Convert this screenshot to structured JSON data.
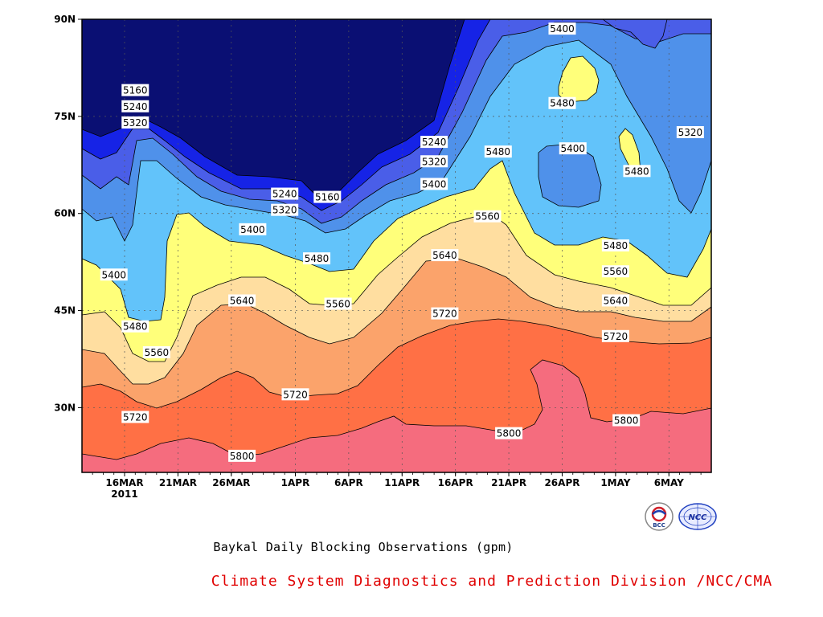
{
  "chart_data": {
    "type": "heatmap",
    "title": "Baykal Daily Blocking Observations (gpm)",
    "xlabel": "",
    "ylabel": "",
    "x_ticks": [
      "16MAR",
      "21MAR",
      "26MAR",
      "1APR",
      "6APR",
      "11APR",
      "16APR",
      "21APR",
      "26APR",
      "1MAY",
      "6MAY"
    ],
    "x_year_label": "2011",
    "y_ticks": [
      "30N",
      "45N",
      "60N",
      "75N",
      "90N"
    ],
    "y_tick_values": [
      30,
      45,
      60,
      75,
      90
    ],
    "ylim": [
      20,
      90
    ],
    "contour_levels": [
      5160,
      5240,
      5320,
      5400,
      5480,
      5560,
      5640,
      5720,
      5800
    ],
    "band_colors": [
      "#0a0f73",
      "#1623e6",
      "#4a5ee8",
      "#4f91ea",
      "#62c3fa",
      "#ffff7a",
      "#ffdea0",
      "#fba36b",
      "#ff7045",
      "#f56c7e"
    ],
    "grid": true,
    "contour_labels": [
      {
        "text": "5160",
        "date": "17MAR",
        "lat": 79
      },
      {
        "text": "5240",
        "date": "17MAR",
        "lat": 76.5
      },
      {
        "text": "5320",
        "date": "17MAR",
        "lat": 74
      },
      {
        "text": "5400",
        "date": "15MAR",
        "lat": 50.5
      },
      {
        "text": "5480",
        "date": "17MAR",
        "lat": 42.5
      },
      {
        "text": "5560",
        "date": "19MAR",
        "lat": 38.5
      },
      {
        "text": "5640",
        "date": "27MAR",
        "lat": 46.5
      },
      {
        "text": "5720",
        "date": "17MAR",
        "lat": 28.5
      },
      {
        "text": "5800",
        "date": "27MAR",
        "lat": 22.5
      },
      {
        "text": "5240",
        "date": "31MAR",
        "lat": 63
      },
      {
        "text": "5320",
        "date": "31MAR",
        "lat": 60.5
      },
      {
        "text": "5400",
        "date": "28MAR",
        "lat": 57.5
      },
      {
        "text": "5160",
        "date": "4APR",
        "lat": 62.5
      },
      {
        "text": "5480",
        "date": "3APR",
        "lat": 53
      },
      {
        "text": "5560",
        "date": "5APR",
        "lat": 46
      },
      {
        "text": "5720",
        "date": "1APR",
        "lat": 32
      },
      {
        "text": "5240",
        "date": "14APR",
        "lat": 71
      },
      {
        "text": "5320",
        "date": "14APR",
        "lat": 68
      },
      {
        "text": "5400",
        "date": "14APR",
        "lat": 64.5
      },
      {
        "text": "5640",
        "date": "15APR",
        "lat": 53.5
      },
      {
        "text": "5720",
        "date": "15APR",
        "lat": 44.5
      },
      {
        "text": "5480",
        "date": "20APR",
        "lat": 69.5
      },
      {
        "text": "5560",
        "date": "19APR",
        "lat": 59.5
      },
      {
        "text": "5800",
        "date": "21APR",
        "lat": 26
      },
      {
        "text": "5400",
        "date": "26APR",
        "lat": 88.5
      },
      {
        "text": "5480",
        "date": "26APR",
        "lat": 77
      },
      {
        "text": "5400",
        "date": "27APR",
        "lat": 70
      },
      {
        "text": "5480",
        "date": "3MAY",
        "lat": 66.5
      },
      {
        "text": "5320",
        "date": "8MAY",
        "lat": 72.5
      },
      {
        "text": "5480",
        "date": "1MAY",
        "lat": 55
      },
      {
        "text": "5560",
        "date": "1MAY",
        "lat": 51
      },
      {
        "text": "5640",
        "date": "1MAY",
        "lat": 46.5
      },
      {
        "text": "5720",
        "date": "1MAY",
        "lat": 41
      },
      {
        "text": "5800",
        "date": "2MAY",
        "lat": 28
      }
    ]
  },
  "credit": "Climate System Diagnostics and Prediction Division /NCC/CMA",
  "logos": {
    "left_text": "BCC",
    "right_text": "NCC"
  }
}
